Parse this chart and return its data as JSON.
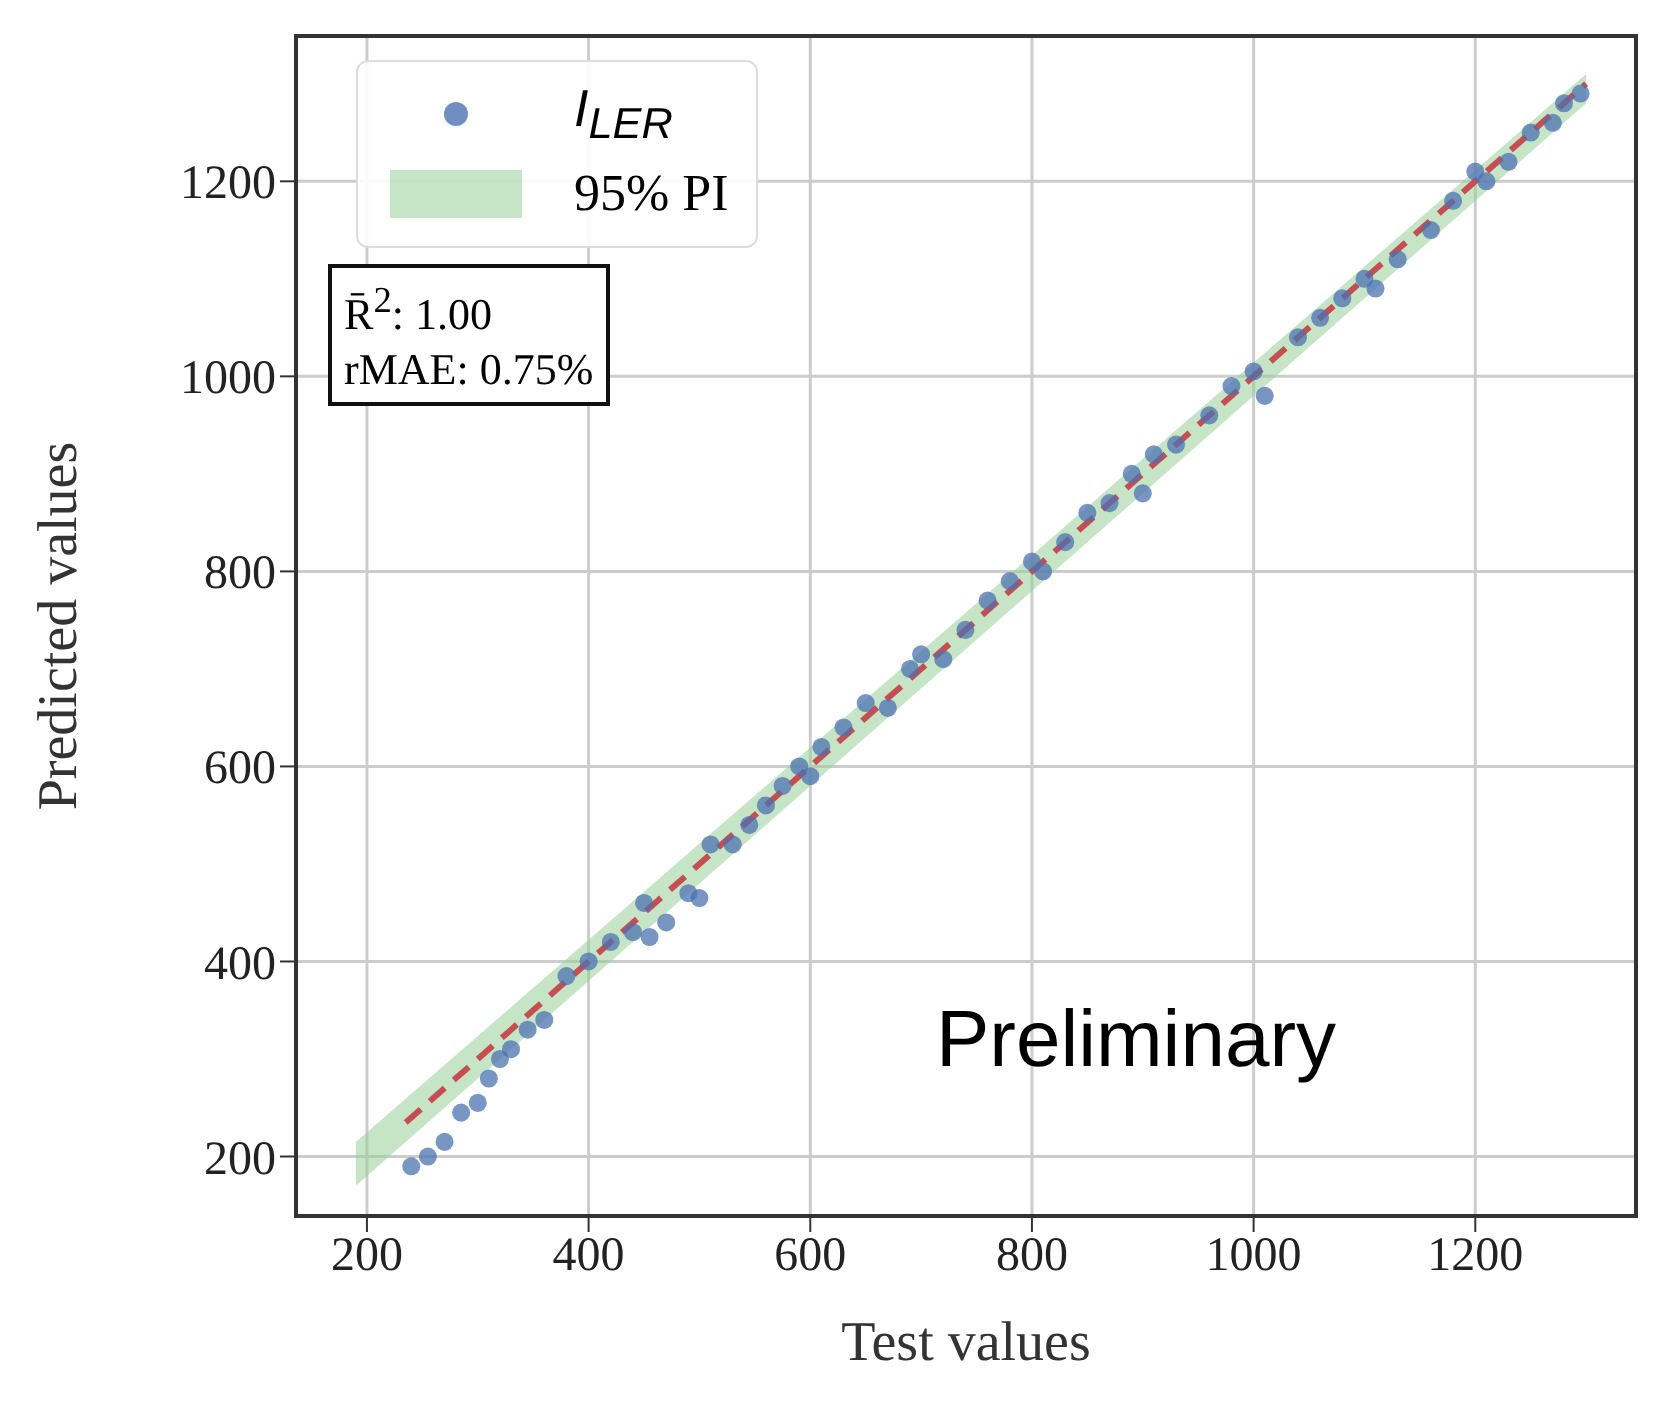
{
  "chart_data": {
    "type": "scatter",
    "xlabel": "Test values",
    "ylabel": "Predicted values",
    "xlim": [
      136,
      1345
    ],
    "ylim": [
      139,
      1349
    ],
    "xticks": [
      200,
      400,
      600,
      800,
      1000,
      1200
    ],
    "yticks": [
      200,
      400,
      600,
      800,
      1000,
      1200
    ],
    "grid": true,
    "legend": "top left",
    "series": [
      {
        "marker": "circle",
        "name": "I$_{LER}$",
        "color": "#4c72b0",
        "x": [
          240,
          255,
          270,
          285,
          300,
          310,
          320,
          330,
          345,
          360,
          380,
          400,
          420,
          440,
          450,
          455,
          470,
          490,
          500,
          510,
          530,
          545,
          560,
          575,
          590,
          600,
          610,
          630,
          650,
          670,
          690,
          700,
          720,
          740,
          760,
          780,
          800,
          810,
          830,
          850,
          870,
          890,
          900,
          910,
          930,
          960,
          980,
          1000,
          1010,
          1040,
          1060,
          1080,
          1100,
          1110,
          1130,
          1160,
          1180,
          1200,
          1210,
          1230,
          1250,
          1270,
          1280,
          1295
        ],
        "values": [
          190,
          200,
          215,
          245,
          255,
          280,
          300,
          310,
          330,
          340,
          385,
          400,
          420,
          430,
          460,
          425,
          440,
          470,
          465,
          520,
          520,
          540,
          560,
          580,
          600,
          590,
          620,
          640,
          665,
          660,
          700,
          715,
          710,
          740,
          770,
          790,
          810,
          800,
          830,
          860,
          870,
          900,
          880,
          920,
          930,
          960,
          990,
          1005,
          980,
          1040,
          1060,
          1080,
          1100,
          1090,
          1120,
          1150,
          1180,
          1210,
          1200,
          1220,
          1250,
          1260,
          1280,
          1290
        ]
      },
      {
        "type": "line",
        "marker": "none",
        "name": "95% PI",
        "color": "#98d098",
        "x": [
          190,
          1300
        ],
        "values": [
          null,
          null
        ],
        "lower": [
          170,
          1280
        ],
        "upper": [
          215,
          1310
        ]
      },
      {
        "type": "line",
        "marker": "none",
        "color": "#c44e52",
        "line_style": "dashed",
        "x": [
          235,
          1300
        ],
        "values": [
          235,
          1300
        ]
      }
    ],
    "annotations": [
      "R̄$^{2}$: 1.00",
      "rMAE: 0.75%",
      "Preliminary"
    ]
  }
}
